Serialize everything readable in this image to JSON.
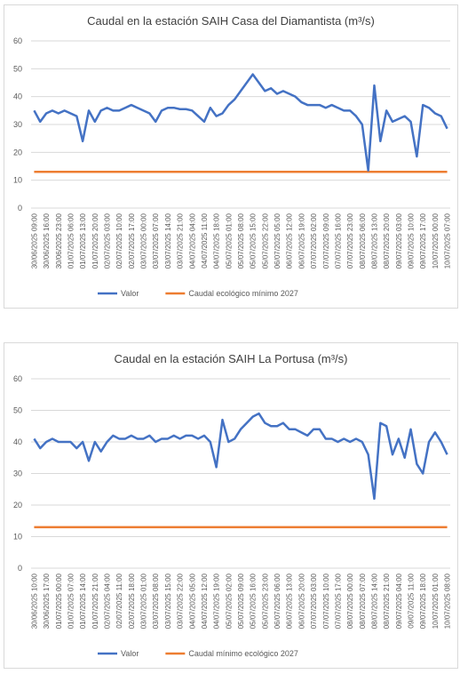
{
  "chart_data": [
    {
      "type": "line",
      "title": "Caudal en la estación SAIH Casa del Diamantista (m³/s)",
      "categories": [
        "30/06/2025 09:00",
        null,
        "30/06/2025 16:00",
        null,
        "30/06/2025 23:00",
        null,
        "01/07/2025 06:00",
        null,
        "01/07/2025 13:00",
        null,
        "01/07/2025 20:00",
        null,
        "02/07/2025 03:00",
        null,
        "02/07/2025 10:00",
        null,
        "02/07/2025 17:00",
        null,
        "03/07/2025 00:00",
        null,
        "03/07/2025 07:00",
        null,
        "03/07/2025 14:00",
        null,
        "03/07/2025 21:00",
        null,
        "04/07/2025 04:00",
        null,
        "04/07/2025 11:00",
        null,
        "04/07/2025 18:00",
        null,
        "05/07/2025 01:00",
        null,
        "05/07/2025 08:00",
        null,
        "05/07/2025 15:00",
        null,
        "05/07/2025 22:00",
        null,
        "06/07/2025 05:00",
        null,
        "06/07/2025 12:00",
        null,
        "06/07/2025 19:00",
        null,
        "07/07/2025 02:00",
        null,
        "07/07/2025 09:00",
        null,
        "07/07/2025 16:00",
        null,
        "07/07/2025 23:00",
        null,
        "08/07/2025 06:00",
        null,
        "08/07/2025 13:00",
        null,
        "08/07/2025 20:00",
        null,
        "09/07/2025 03:00",
        null,
        "09/07/2025 10:00",
        null,
        "09/07/2025 17:00",
        null,
        "10/07/2025 00:00",
        null,
        "10/07/2025 07:00"
      ],
      "series": [
        {
          "name": "Valor",
          "color": "#4472c4",
          "values": [
            35,
            31,
            34,
            35,
            34,
            35,
            34,
            33,
            24,
            35,
            31,
            35,
            36,
            35,
            35,
            36,
            37,
            36,
            35,
            34,
            31,
            35,
            36,
            36,
            35.5,
            35.5,
            35,
            33,
            31,
            36,
            33,
            34,
            37,
            39,
            42,
            45,
            48,
            45,
            42,
            43,
            41,
            42,
            41,
            40,
            38,
            37,
            37,
            37,
            36,
            37,
            36,
            35,
            35,
            33,
            30,
            13.5,
            44,
            24,
            35,
            31,
            32,
            33,
            31,
            18.5,
            37,
            36,
            34,
            33,
            28.5
          ]
        },
        {
          "name": "Caudal ecológico mínimo 2027",
          "color": "#ed7d31",
          "values": [
            13,
            13,
            13,
            13,
            13,
            13,
            13,
            13,
            13,
            13,
            13,
            13,
            13,
            13,
            13,
            13,
            13,
            13,
            13,
            13,
            13,
            13,
            13,
            13,
            13,
            13,
            13,
            13,
            13,
            13,
            13,
            13,
            13,
            13,
            13,
            13,
            13,
            13,
            13,
            13,
            13,
            13,
            13,
            13,
            13,
            13,
            13,
            13,
            13,
            13,
            13,
            13,
            13,
            13,
            13,
            13,
            13,
            13,
            13,
            13,
            13,
            13,
            13,
            13,
            13,
            13,
            13,
            13,
            13
          ]
        }
      ],
      "ylim": [
        0,
        60
      ],
      "yticks": [
        0,
        10,
        20,
        30,
        40,
        50,
        60
      ],
      "grid": true,
      "legend": "bottom"
    },
    {
      "type": "line",
      "title": "Caudal en la estación SAIH La Portusa (m³/s)",
      "categories": [
        "30/06/2025 10:00",
        null,
        "30/06/2025 17:00",
        null,
        "01/07/2025 00:00",
        null,
        "01/07/2025 07:00",
        null,
        "01/07/2025 14:00",
        null,
        "01/07/2025 21:00",
        null,
        "02/07/2025 04:00",
        null,
        "02/07/2025 11:00",
        null,
        "02/07/2025 18:00",
        null,
        "03/07/2025 01:00",
        null,
        "03/07/2025 08:00",
        null,
        "03/07/2025 15:00",
        null,
        "03/07/2025 22:00",
        null,
        "04/07/2025 05:00",
        null,
        "04/07/2025 12:00",
        null,
        "04/07/2025 19:00",
        null,
        "05/07/2025 02:00",
        null,
        "05/07/2025 09:00",
        null,
        "05/07/2025 16:00",
        null,
        "05/07/2025 23:00",
        null,
        "06/07/2025 06:00",
        null,
        "06/07/2025 13:00",
        null,
        "06/07/2025 20:00",
        null,
        "07/07/2025 03:00",
        null,
        "07/07/2025 10:00",
        null,
        "07/07/2025 17:00",
        null,
        "08/07/2025 00:00",
        null,
        "08/07/2025 07:00",
        null,
        "08/07/2025 14:00",
        null,
        "08/07/2025 21:00",
        null,
        "09/07/2025 04:00",
        null,
        "09/07/2025 11:00",
        null,
        "09/07/2025 18:00",
        null,
        "10/07/2025 01:00",
        null,
        "10/07/2025 08:00"
      ],
      "series": [
        {
          "name": "Valor",
          "color": "#4472c4",
          "values": [
            41,
            38,
            40,
            41,
            40,
            40,
            40,
            38,
            40,
            34,
            40,
            37,
            40,
            42,
            41,
            41,
            42,
            41,
            41,
            42,
            40,
            41,
            41,
            42,
            41,
            42,
            42,
            41,
            42,
            40,
            32,
            47,
            40,
            41,
            44,
            46,
            48,
            49,
            46,
            45,
            45,
            46,
            44,
            44,
            43,
            42,
            44,
            44,
            41,
            41,
            40,
            41,
            40,
            41,
            40,
            36,
            22,
            46,
            45,
            36,
            41,
            35,
            44,
            33,
            30,
            40,
            43,
            40,
            36
          ]
        },
        {
          "name": "Caudal mínimo ecológico 2027",
          "color": "#ed7d31",
          "values": [
            13,
            13,
            13,
            13,
            13,
            13,
            13,
            13,
            13,
            13,
            13,
            13,
            13,
            13,
            13,
            13,
            13,
            13,
            13,
            13,
            13,
            13,
            13,
            13,
            13,
            13,
            13,
            13,
            13,
            13,
            13,
            13,
            13,
            13,
            13,
            13,
            13,
            13,
            13,
            13,
            13,
            13,
            13,
            13,
            13,
            13,
            13,
            13,
            13,
            13,
            13,
            13,
            13,
            13,
            13,
            13,
            13,
            13,
            13,
            13,
            13,
            13,
            13,
            13,
            13,
            13,
            13,
            13,
            13
          ]
        }
      ],
      "ylim": [
        0,
        60
      ],
      "yticks": [
        0,
        10,
        20,
        30,
        40,
        50,
        60
      ],
      "grid": true,
      "legend": "bottom"
    }
  ]
}
